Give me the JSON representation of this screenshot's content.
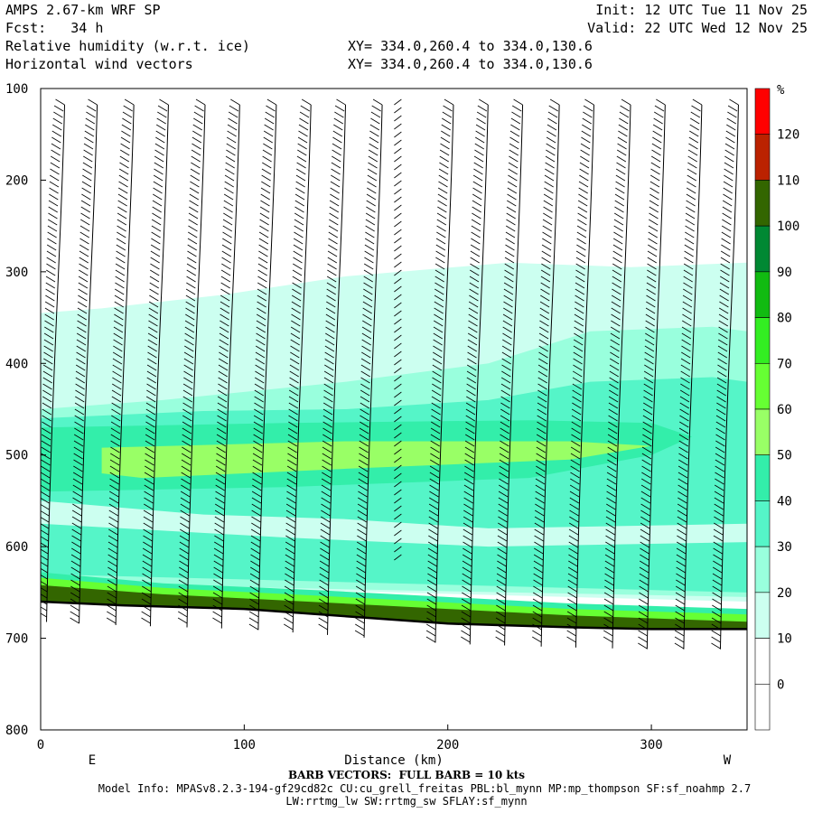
{
  "header": {
    "model_title": "AMPS 2.67-km WRF SP",
    "forecast": "Fcst:   34 h",
    "init": "Init: 12 UTC Tue 11 Nov 25",
    "valid": "Valid: 22 UTC Wed 12 Nov 25",
    "field1": "Relative humidity (w.r.t. ice)",
    "field2": "Horizontal wind vectors",
    "xy1": "XY= 334.0,260.4 to 334.0,130.6",
    "xy2": "XY= 334.0,260.4 to 334.0,130.6"
  },
  "footer": {
    "barb_note": "BARB VECTORS:  FULL BARB = 10 kts",
    "model_info": "Model Info: MPASv8.2.3-194-gf29cd82c CU:cu_grell_freitas PBL:bl_mynn MP:mp_thompson SF:sf_noahmp 2.7",
    "model_info2": "LW:rrtmg_lw SW:rrtmg_sw SFLAY:sf_mynn"
  },
  "colors": {
    "levels": [
      "#ffffff",
      "#ffffff",
      "#ffffff",
      "#ffffff",
      "#ccfff0",
      "#99ffdd",
      "#55f5c8",
      "#33eeaa",
      "#99ff66",
      "#66ff33",
      "#33ee22",
      "#11bb11",
      "#008833",
      "#336600",
      "#bb2200",
      "#ff0000"
    ],
    "terrain": "#000000"
  },
  "chart_data": {
    "type": "heatmap",
    "title": "Relative humidity (w.r.t. ice)",
    "xlabel": "Distance (km)",
    "ylabel": "",
    "xlim": [
      0,
      347
    ],
    "ylim": [
      800,
      100
    ],
    "x_ticks": [
      0,
      100,
      200,
      300
    ],
    "y_ticks": [
      100,
      200,
      300,
      400,
      500,
      600,
      700,
      800
    ],
    "x_end_labels": {
      "left": "E",
      "right": "W"
    },
    "colorbar": {
      "unit": "%",
      "tick_labels": [
        "120",
        "110",
        "100",
        "90",
        "80",
        "70",
        "60",
        "50",
        "40",
        "30",
        "20",
        "10",
        "0"
      ],
      "boundaries": [
        130,
        120,
        110,
        100,
        90,
        80,
        70,
        60,
        50,
        40,
        30,
        20,
        10,
        0,
        -10
      ]
    },
    "contour_layers": [
      {
        "min_rh": 30,
        "points": [
          [
            0,
            345
          ],
          [
            30,
            340
          ],
          [
            90,
            325
          ],
          [
            150,
            305
          ],
          [
            230,
            290
          ],
          [
            290,
            295
          ],
          [
            347,
            290
          ],
          [
            347,
            660
          ],
          [
            0,
            640
          ]
        ]
      },
      {
        "min_rh": 40,
        "points": [
          [
            0,
            450
          ],
          [
            60,
            440
          ],
          [
            150,
            420
          ],
          [
            220,
            400
          ],
          [
            270,
            365
          ],
          [
            330,
            360
          ],
          [
            347,
            365
          ],
          [
            347,
            655
          ],
          [
            0,
            640
          ]
        ]
      },
      {
        "min_rh": 50,
        "points": [
          [
            0,
            460
          ],
          [
            80,
            452
          ],
          [
            150,
            450
          ],
          [
            220,
            440
          ],
          [
            270,
            420
          ],
          [
            330,
            415
          ],
          [
            347,
            420
          ],
          [
            347,
            650
          ],
          [
            0,
            630
          ]
        ]
      },
      {
        "min_rh": 60,
        "points": [
          [
            0,
            470
          ],
          [
            120,
            465
          ],
          [
            240,
            462
          ],
          [
            300,
            465
          ],
          [
            320,
            480
          ],
          [
            300,
            500
          ],
          [
            240,
            525
          ],
          [
            120,
            535
          ],
          [
            0,
            540
          ]
        ]
      },
      {
        "min_rh": 70,
        "points": [
          [
            30,
            492
          ],
          [
            150,
            485
          ],
          [
            260,
            485
          ],
          [
            300,
            490
          ],
          [
            260,
            505
          ],
          [
            150,
            515
          ],
          [
            50,
            525
          ],
          [
            30,
            520
          ]
        ]
      }
    ],
    "clear_bands": [
      {
        "points": [
          [
            0,
            550
          ],
          [
            80,
            565
          ],
          [
            150,
            570
          ],
          [
            220,
            580
          ],
          [
            347,
            575
          ],
          [
            347,
            595
          ],
          [
            220,
            600
          ],
          [
            120,
            590
          ],
          [
            0,
            575
          ]
        ]
      }
    ],
    "surface_layers": [
      {
        "min_rh": 60,
        "points": [
          [
            0,
            628
          ],
          [
            60,
            640
          ],
          [
            140,
            648
          ],
          [
            200,
            655
          ],
          [
            260,
            662
          ],
          [
            347,
            668
          ],
          [
            347,
            700
          ],
          [
            0,
            700
          ]
        ]
      },
      {
        "min_rh": 80,
        "points": [
          [
            0,
            634
          ],
          [
            60,
            645
          ],
          [
            140,
            654
          ],
          [
            200,
            661
          ],
          [
            260,
            668
          ],
          [
            347,
            674
          ],
          [
            347,
            700
          ],
          [
            0,
            700
          ]
        ]
      },
      {
        "min_rh": 120,
        "points": [
          [
            0,
            642
          ],
          [
            60,
            652
          ],
          [
            140,
            661
          ],
          [
            200,
            668
          ],
          [
            260,
            675
          ],
          [
            347,
            682
          ],
          [
            347,
            700
          ],
          [
            0,
            700
          ]
        ]
      }
    ],
    "terrain_line": [
      [
        0,
        660
      ],
      [
        40,
        664
      ],
      [
        100,
        668
      ],
      [
        150,
        676
      ],
      [
        200,
        684
      ],
      [
        260,
        688
      ],
      [
        300,
        690
      ],
      [
        347,
        690
      ]
    ],
    "barb_columns_km": [
      2,
      18,
      36,
      53,
      71,
      88,
      106,
      123,
      140,
      158,
      175,
      193,
      210,
      227,
      245,
      262,
      280,
      297,
      315,
      333
    ]
  }
}
